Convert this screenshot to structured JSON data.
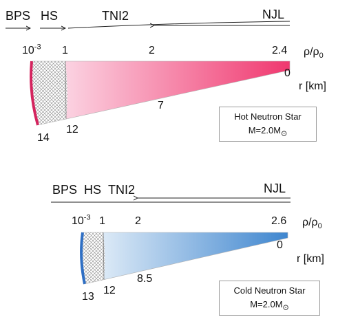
{
  "hot": {
    "eos_labels": {
      "bps": "BPS",
      "hs": "HS",
      "tni2": "TNI2",
      "njl": "NJL"
    },
    "density_labels": {
      "d0": "10",
      "d0_exp": "-3",
      "d1": "1",
      "d2": "2",
      "d3": "2.4"
    },
    "density_axis": {
      "rho": "ρ/ρ",
      "sub": "0"
    },
    "radius_labels": {
      "r0": "0",
      "r7": "7",
      "r12": "12",
      "r14": "14"
    },
    "radius_axis": "r [km]",
    "box": {
      "line1": "Hot Neutron Star",
      "line2_prefix": "M=2.0M",
      "line2_sub": "⊙"
    },
    "colors": {
      "gradient_start": "#fdeaf3",
      "gradient_end": "#f0386f",
      "crust": "#d4245e"
    }
  },
  "cold": {
    "eos_labels": {
      "bps": "BPS",
      "hs": "HS",
      "tni2": "TNI2",
      "njl": "NJL"
    },
    "density_labels": {
      "d0": "10",
      "d0_exp": "-3",
      "d1": "1",
      "d2": "2",
      "d3": "2.6"
    },
    "density_axis": {
      "rho": "ρ/ρ",
      "sub": "0"
    },
    "radius_labels": {
      "r0": "0",
      "r85": "8.5",
      "r12": "12",
      "r13": "13"
    },
    "radius_axis": "r [km]",
    "box": {
      "line1": "Cold Neutron Star",
      "line2_prefix": "M=2.0M",
      "line2_sub": "⊙"
    },
    "colors": {
      "gradient_start": "#eef5fb",
      "gradient_end": "#3f86cf",
      "crust": "#2f6fc4"
    }
  }
}
